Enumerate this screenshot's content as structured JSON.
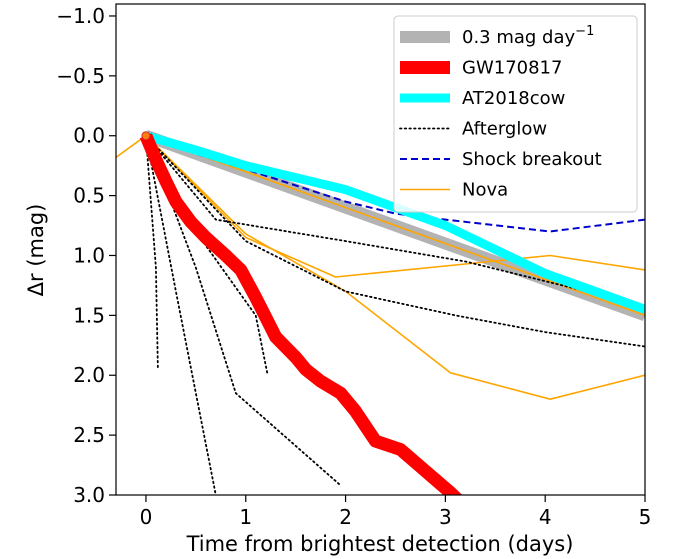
{
  "chart_data": {
    "type": "line",
    "xlabel": "Time from brightest detection (days)",
    "ylabel": "Δr (mag)",
    "xlim": [
      -0.3,
      5
    ],
    "ylim": [
      -1.1,
      3.0
    ],
    "y_inverted": true,
    "xticks": [
      0,
      1,
      2,
      3,
      4,
      5
    ],
    "yticks": [
      -1.0,
      -0.5,
      0.0,
      0.5,
      1.0,
      1.5,
      2.0,
      2.5,
      3.0
    ],
    "legend_position": "upper-right",
    "legend": [
      {
        "label": "0.3 mag day",
        "sup": "−1",
        "color": "#b3b3b3",
        "style": "solid-thick"
      },
      {
        "label": "GW170817",
        "color": "#ff0000",
        "style": "solid-thick"
      },
      {
        "label": "AT2018cow",
        "color": "#00ffff",
        "style": "solid-thick"
      },
      {
        "label": "Afterglow",
        "color": "#000000",
        "style": "dotted"
      },
      {
        "label": "Shock breakout",
        "color": "#0000cc",
        "style": "dashed"
      },
      {
        "label": "Nova",
        "color": "#ffa500",
        "style": "solid"
      }
    ],
    "series": [
      {
        "group": "0.3 mag day",
        "color": "#b3b3b3",
        "style": "solid-thick",
        "points": [
          [
            0,
            0
          ],
          [
            5,
            1.5
          ]
        ]
      },
      {
        "group": "Nova",
        "color": "#ffa500",
        "style": "solid",
        "points": [
          [
            -0.3,
            0.18
          ],
          [
            0,
            0
          ],
          [
            1,
            0.85
          ],
          [
            1.9,
            1.18
          ],
          [
            4.05,
            1.0
          ],
          [
            5,
            1.12
          ]
        ]
      },
      {
        "group": "Nova",
        "color": "#ffa500",
        "style": "solid",
        "points": [
          [
            0,
            0
          ],
          [
            1,
            0.82
          ],
          [
            2,
            1.3
          ],
          [
            3.05,
            1.98
          ],
          [
            4.05,
            2.2
          ],
          [
            5,
            2.0
          ]
        ]
      },
      {
        "group": "Nova",
        "color": "#ffa500",
        "style": "solid",
        "points": [
          [
            0,
            0
          ],
          [
            5,
            1.5
          ]
        ]
      },
      {
        "group": "Shock breakout",
        "color": "#0000cc",
        "style": "dashed",
        "points": [
          [
            0,
            0
          ],
          [
            0.5,
            0.15
          ],
          [
            1,
            0.28
          ],
          [
            2,
            0.55
          ],
          [
            2.5,
            0.65
          ],
          [
            3,
            0.7
          ],
          [
            4.05,
            0.8
          ],
          [
            5,
            0.7
          ]
        ]
      },
      {
        "group": "Afterglow",
        "color": "#000000",
        "style": "dotted",
        "points": [
          [
            0,
            0
          ],
          [
            0.1,
            1.1
          ],
          [
            0.12,
            1.95
          ]
        ]
      },
      {
        "group": "Afterglow",
        "color": "#000000",
        "style": "dotted",
        "points": [
          [
            0,
            0
          ],
          [
            0.3,
            1.3
          ],
          [
            0.7,
            3.0
          ]
        ]
      },
      {
        "group": "Afterglow",
        "color": "#000000",
        "style": "dotted",
        "points": [
          [
            0,
            0
          ],
          [
            0.5,
            1.1
          ],
          [
            0.9,
            2.15
          ],
          [
            1.95,
            2.92
          ]
        ]
      },
      {
        "group": "Afterglow",
        "color": "#000000",
        "style": "dotted",
        "points": [
          [
            0,
            0
          ],
          [
            0.5,
            0.8
          ],
          [
            1.1,
            1.5
          ],
          [
            1.22,
            2.0
          ]
        ]
      },
      {
        "group": "Afterglow",
        "color": "#000000",
        "style": "dotted",
        "points": [
          [
            0,
            0
          ],
          [
            0.7,
            0.7
          ],
          [
            2,
            0.88
          ],
          [
            3.2,
            1.05
          ],
          [
            5,
            1.42
          ]
        ]
      },
      {
        "group": "Afterglow",
        "color": "#000000",
        "style": "dotted",
        "points": [
          [
            0,
            0
          ],
          [
            1,
            0.88
          ],
          [
            2,
            1.3
          ],
          [
            3.1,
            1.5
          ],
          [
            4,
            1.64
          ],
          [
            5,
            1.76
          ]
        ]
      },
      {
        "group": "AT2018cow",
        "color": "#00ffff",
        "style": "solid-thick",
        "points": [
          [
            0,
            0
          ],
          [
            0.5,
            0.12
          ],
          [
            1,
            0.25
          ],
          [
            1.5,
            0.35
          ],
          [
            2,
            0.45
          ],
          [
            2.5,
            0.6
          ],
          [
            3,
            0.75
          ],
          [
            3.5,
            0.95
          ],
          [
            4,
            1.15
          ],
          [
            4.5,
            1.3
          ],
          [
            5,
            1.45
          ]
        ]
      },
      {
        "group": "GW170817",
        "color": "#ff0000",
        "style": "solid-thick",
        "points": [
          [
            0,
            0
          ],
          [
            0.1,
            0.2
          ],
          [
            0.2,
            0.38
          ],
          [
            0.3,
            0.55
          ],
          [
            0.45,
            0.72
          ],
          [
            0.6,
            0.85
          ],
          [
            0.8,
            1.0
          ],
          [
            0.95,
            1.12
          ],
          [
            1.1,
            1.35
          ],
          [
            1.3,
            1.68
          ],
          [
            1.5,
            1.85
          ],
          [
            1.6,
            1.95
          ],
          [
            1.75,
            2.05
          ],
          [
            1.95,
            2.15
          ],
          [
            2.1,
            2.3
          ],
          [
            2.3,
            2.55
          ],
          [
            2.55,
            2.62
          ],
          [
            2.8,
            2.8
          ],
          [
            3.05,
            2.98
          ],
          [
            3.2,
            3.1
          ]
        ]
      }
    ]
  }
}
